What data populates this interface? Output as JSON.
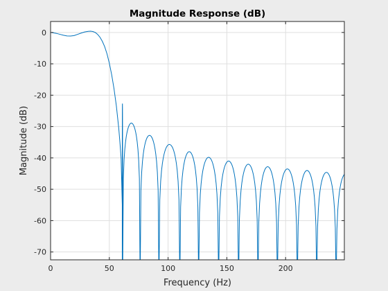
{
  "chart_data": {
    "type": "line",
    "title": "Magnitude Response (dB)",
    "xlabel": "Frequency (Hz)",
    "ylabel": "Magnitude (dB)",
    "xlim": [
      0,
      250
    ],
    "ylim": [
      -72.5,
      3.5
    ],
    "xticks": [
      0,
      50,
      100,
      150,
      200
    ],
    "yticks": [
      0,
      -10,
      -20,
      -30,
      -40,
      -50,
      -60,
      -70
    ],
    "grid": true,
    "passband_points": [
      [
        0,
        0
      ],
      [
        2,
        -0.1
      ],
      [
        5,
        -0.3
      ],
      [
        8,
        -0.6
      ],
      [
        11,
        -0.9
      ],
      [
        14,
        -1.1
      ],
      [
        17,
        -1.15
      ],
      [
        20,
        -1.0
      ],
      [
        23,
        -0.6
      ],
      [
        26,
        -0.2
      ],
      [
        29,
        0.15
      ],
      [
        32,
        0.35
      ],
      [
        34,
        0.4
      ],
      [
        36,
        0.3
      ],
      [
        38,
        0.0
      ],
      [
        40,
        -0.6
      ],
      [
        42,
        -1.5
      ],
      [
        44,
        -2.8
      ],
      [
        46,
        -4.5
      ],
      [
        48,
        -6.8
      ],
      [
        50,
        -9.8
      ],
      [
        52,
        -13.5
      ],
      [
        54,
        -18.0
      ],
      [
        56,
        -23.5
      ],
      [
        58,
        -30.5
      ],
      [
        59,
        -35.0
      ],
      [
        60,
        -40.0
      ],
      [
        61,
        -55.0
      ]
    ],
    "sidelobe_nulls": [
      61,
      61.3,
      76.2,
      92.2,
      110.0,
      126.0,
      143.0,
      160.0,
      176.5,
      193.0,
      210.0,
      226.5,
      243.0,
      259.5
    ],
    "sidelobe_peaks": [
      -22.7,
      -28.9,
      -32.8,
      -35.7,
      -38.0,
      -39.8,
      -41.0,
      -42.0,
      -42.8,
      -43.5,
      -44.0,
      -44.6,
      -45.0
    ],
    "colors": {
      "line": "#0072bd",
      "axes_background": "#ffffff",
      "figure_background": "#ececec",
      "grid": "#dfdfdf",
      "axis": "#262626"
    }
  }
}
